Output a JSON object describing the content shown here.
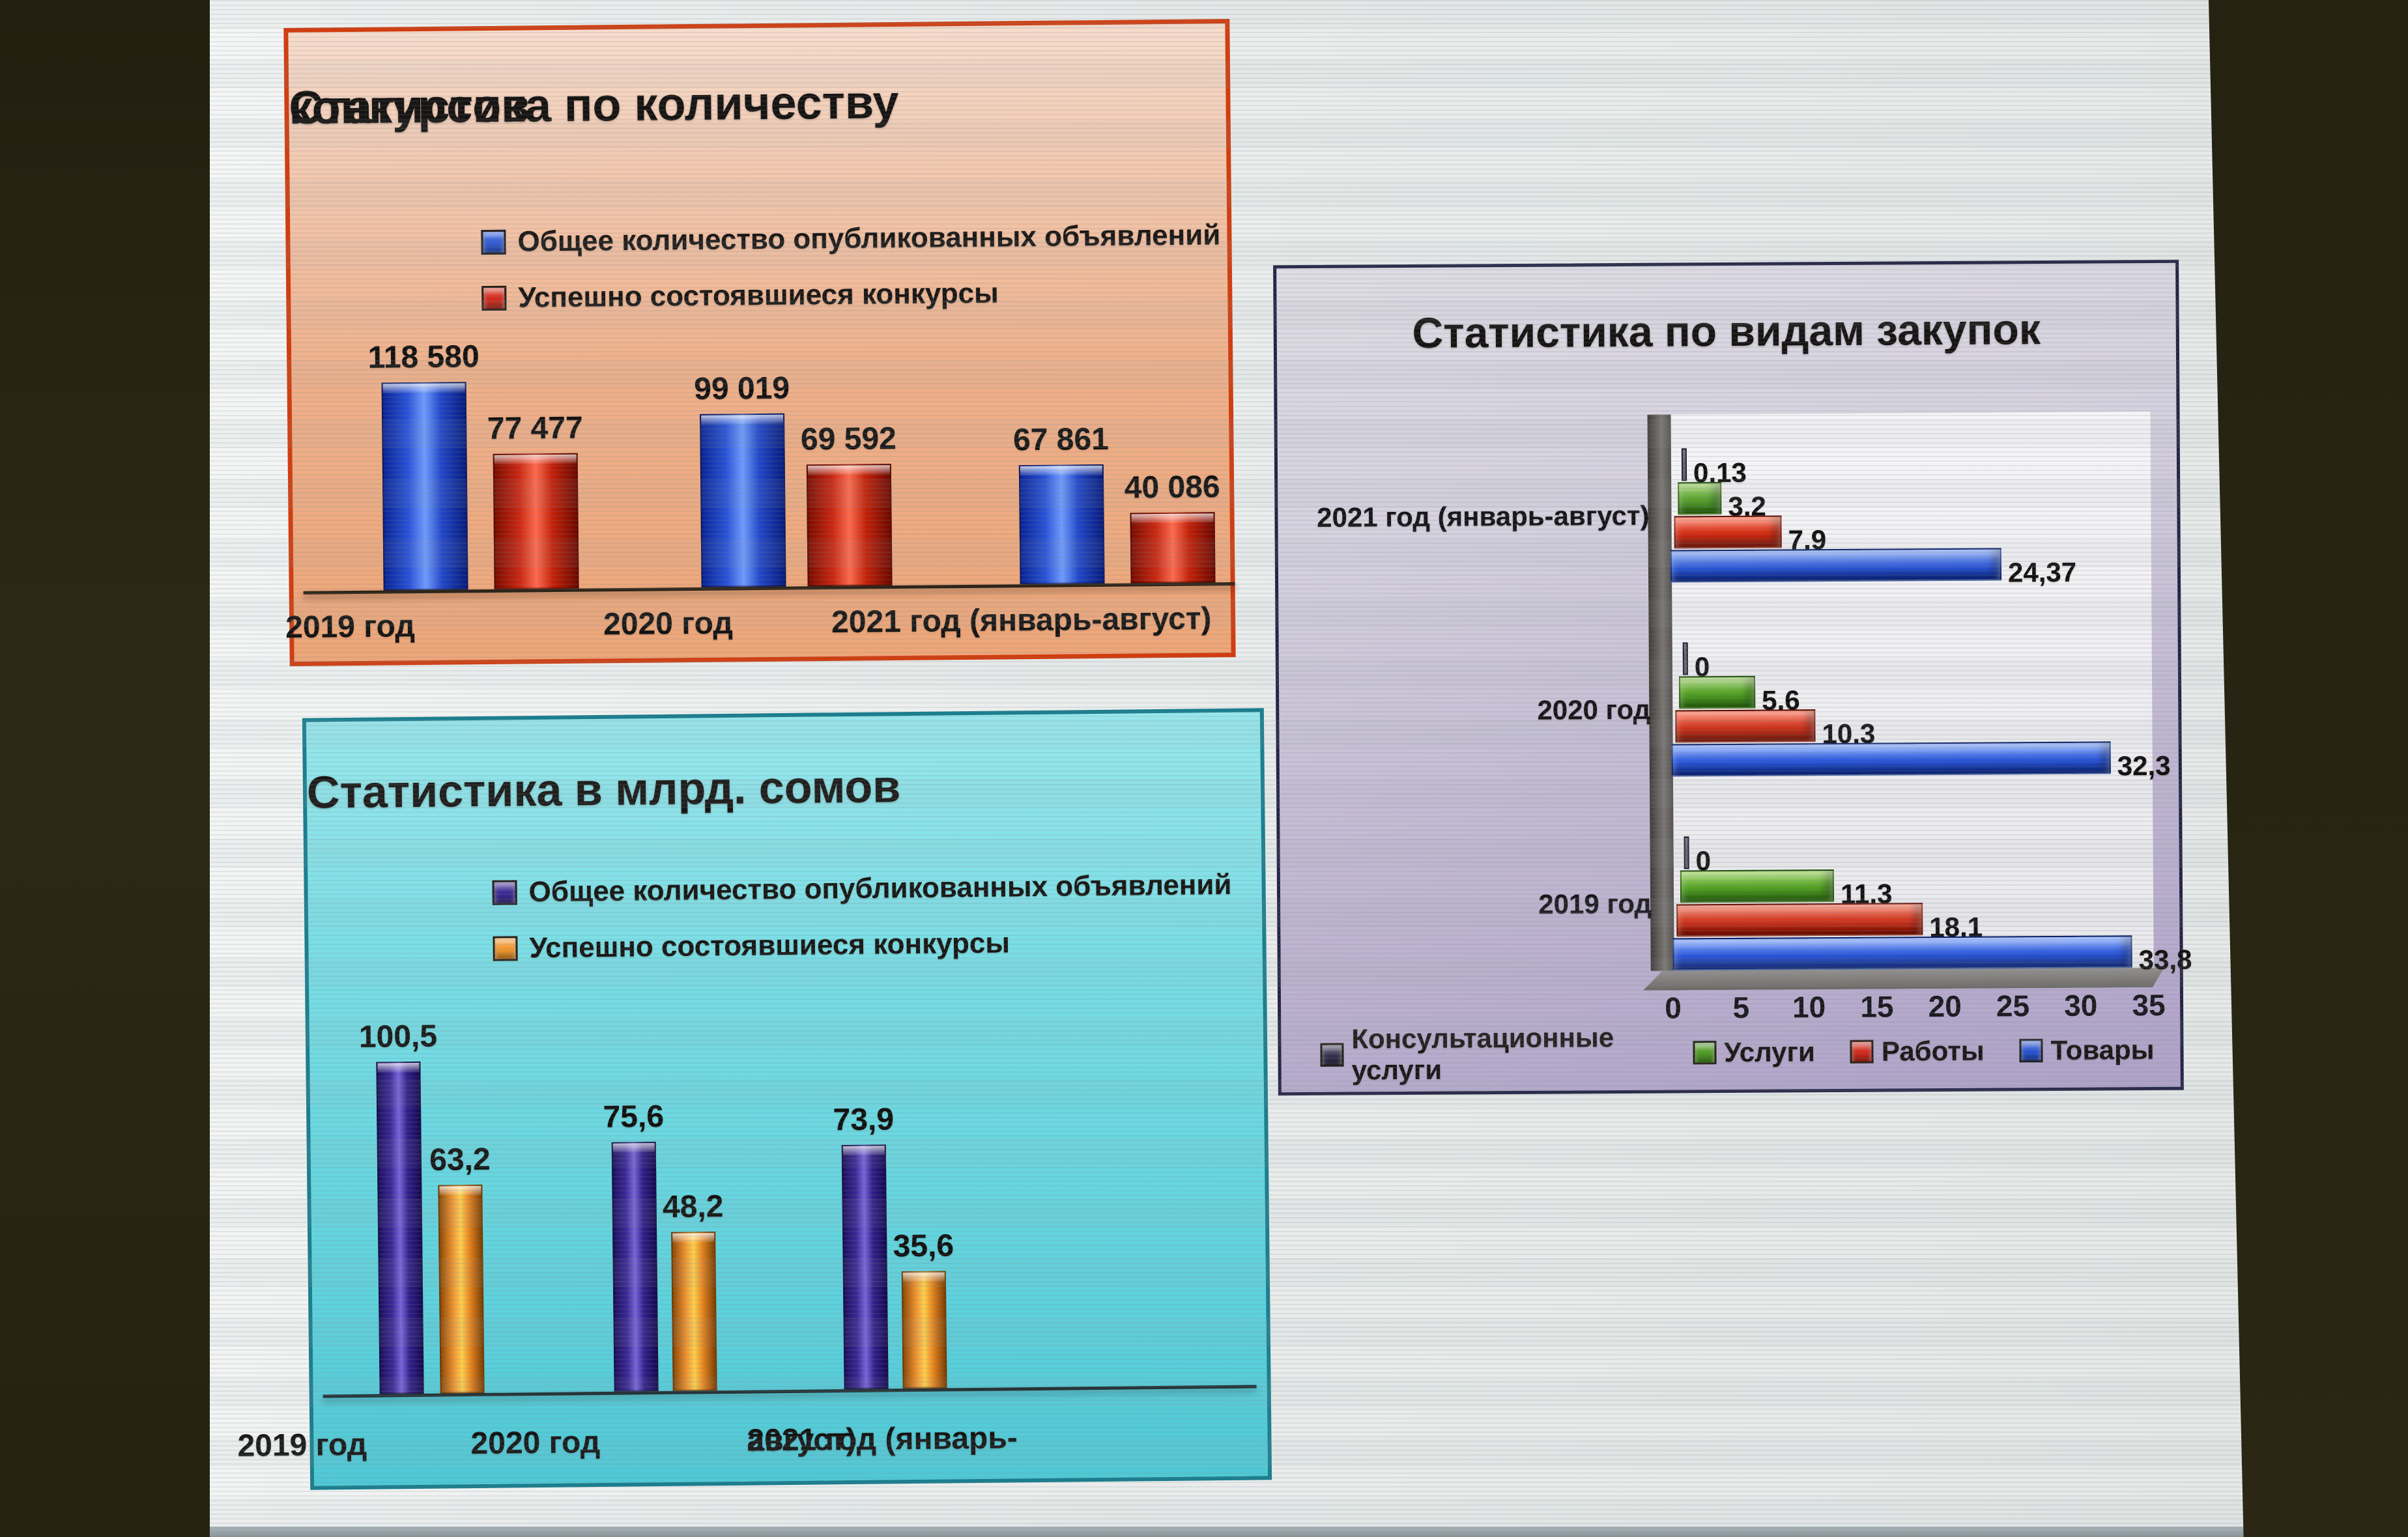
{
  "scene": {
    "description": "Photograph of a projected presentation slide with three statistics charts",
    "room_color": "#262212",
    "screen_color": "#eaedec"
  },
  "chart_data": [
    {
      "type": "bar",
      "title": "Статистика по количеству конкурсов",
      "title_lines": [
        "Статистика по количеству",
        "конкурсов"
      ],
      "legend_position": "top-left",
      "panel": {
        "bg": "#efb08a",
        "border": "#d23c0e"
      },
      "categories": [
        "2019 год",
        "2020 год",
        "2021 год (январь-август)"
      ],
      "series": [
        {
          "name": "Общее количество опубликованных объявлений",
          "color": "#2a56d8",
          "values": [
            118580,
            99019,
            67861
          ],
          "value_labels": [
            "118 580",
            "99 019",
            "67 861"
          ]
        },
        {
          "name": "Успешно состоявшиеся конкурсы",
          "color": "#d8291a",
          "values": [
            77477,
            69592,
            40086
          ],
          "value_labels": [
            "77 477",
            "69 592",
            "40 086"
          ]
        }
      ],
      "ylim": [
        0,
        125000
      ],
      "grid": false
    },
    {
      "type": "bar",
      "title": "Статистика в млрд. сомов",
      "title_lines": [
        "Статистика в млрд. сомов"
      ],
      "legend_position": "top-left",
      "panel": {
        "bg": "#5fd2dd",
        "border": "#1a7e8e"
      },
      "categories": [
        "2019 год",
        "2020 год",
        "2021 год (январь-август)"
      ],
      "categories_display": [
        [
          "2019 год"
        ],
        [
          "2020 год"
        ],
        [
          "2021 год (январь-",
          "август)"
        ]
      ],
      "series": [
        {
          "name": "Общее количество опубликованных объявлений",
          "color": "#3f2b96",
          "values": [
            100.5,
            75.6,
            73.9
          ],
          "value_labels": [
            "100,5",
            "75,6",
            "73,9"
          ]
        },
        {
          "name": "Успешно состоявшиеся конкурсы",
          "color": "#f59a2d",
          "values": [
            63.2,
            48.2,
            35.6
          ],
          "value_labels": [
            "63,2",
            "48,2",
            "35,6"
          ]
        }
      ],
      "ylim": [
        0,
        110
      ],
      "grid": false
    },
    {
      "type": "bar-horizontal",
      "title": "Статистика по видам закупок",
      "legend_position": "bottom",
      "panel": {
        "bg": "#c3bad3",
        "border": "#232244"
      },
      "categories": [
        "2021 год (январь-август)",
        "2020 год",
        "2019 год"
      ],
      "series": [
        {
          "name": "Консультационные услуги",
          "color": "#37324e",
          "values": [
            0.13,
            0,
            0
          ],
          "value_labels": [
            "0,13",
            "0",
            "0"
          ]
        },
        {
          "name": "Услуги",
          "color": "#4f9e22",
          "values": [
            3.2,
            5.6,
            11.3
          ],
          "value_labels": [
            "3,2",
            "5,6",
            "11,3"
          ]
        },
        {
          "name": "Работы",
          "color": "#d8291a",
          "values": [
            7.9,
            10.3,
            18.1
          ],
          "value_labels": [
            "7,9",
            "10,3",
            "18,1"
          ]
        },
        {
          "name": "Товары",
          "color": "#2a56d8",
          "values": [
            24.37,
            32.3,
            33.8
          ],
          "value_labels": [
            "24,37",
            "32,3",
            "33,8"
          ]
        }
      ],
      "x_ticks": [
        "0",
        "5",
        "10",
        "15",
        "20",
        "25",
        "30",
        "35"
      ],
      "xlim": [
        0,
        35
      ],
      "grid": false
    }
  ]
}
